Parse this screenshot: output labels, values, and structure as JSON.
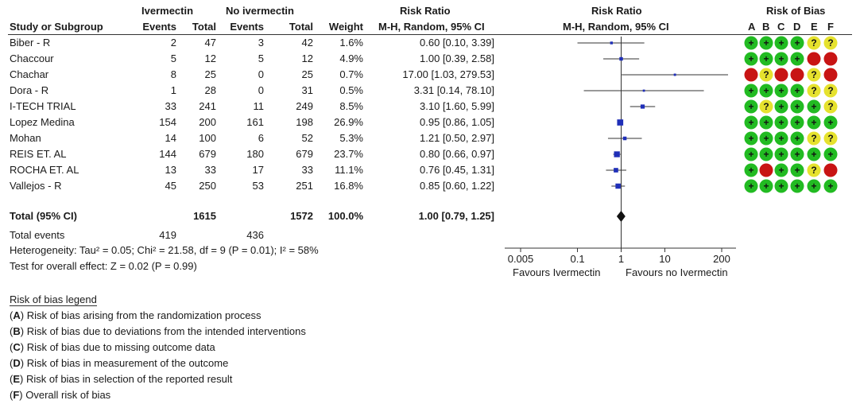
{
  "headers": {
    "group1": "Ivermectin",
    "group2": "No ivermectin",
    "study": "Study or Subgroup",
    "events": "Events",
    "total": "Total",
    "weight": "Weight",
    "rr_title": "Risk Ratio",
    "rr_sub": "M-H, Random, 95% CI",
    "plot_title": "Risk Ratio",
    "plot_sub": "M-H, Random, 95% CI",
    "rob_title": "Risk of Bias",
    "rob_letters": [
      "A",
      "B",
      "C",
      "D",
      "E",
      "F"
    ]
  },
  "studies": [
    {
      "name": "Biber - R",
      "e1": "2",
      "t1": "47",
      "e2": "3",
      "t2": "42",
      "weight": "1.6%",
      "rr": "0.60 [0.10, 3.39]",
      "rob": [
        "+",
        "+",
        "+",
        "+",
        "?",
        "?"
      ]
    },
    {
      "name": "Chaccour",
      "e1": "5",
      "t1": "12",
      "e2": "5",
      "t2": "12",
      "weight": "4.9%",
      "rr": "1.00 [0.39, 2.58]",
      "rob": [
        "+",
        "+",
        "+",
        "+",
        "-",
        "-"
      ]
    },
    {
      "name": "Chachar",
      "e1": "8",
      "t1": "25",
      "e2": "0",
      "t2": "25",
      "weight": "0.7%",
      "rr": "17.00 [1.03, 279.53]",
      "rob": [
        "-",
        "?",
        "-",
        "-",
        "?",
        "-"
      ]
    },
    {
      "name": "Dora - R",
      "e1": "1",
      "t1": "28",
      "e2": "0",
      "t2": "31",
      "weight": "0.5%",
      "rr": "3.31 [0.14, 78.10]",
      "rob": [
        "+",
        "+",
        "+",
        "+",
        "?",
        "?"
      ]
    },
    {
      "name": "I-TECH TRIAL",
      "e1": "33",
      "t1": "241",
      "e2": "11",
      "t2": "249",
      "weight": "8.5%",
      "rr": "3.10 [1.60, 5.99]",
      "rob": [
        "+",
        "?",
        "+",
        "+",
        "+",
        "?"
      ]
    },
    {
      "name": "Lopez Medina",
      "e1": "154",
      "t1": "200",
      "e2": "161",
      "t2": "198",
      "weight": "26.9%",
      "rr": "0.95 [0.86, 1.05]",
      "rob": [
        "+",
        "+",
        "+",
        "+",
        "+",
        "+"
      ]
    },
    {
      "name": "Mohan",
      "e1": "14",
      "t1": "100",
      "e2": "6",
      "t2": "52",
      "weight": "5.3%",
      "rr": "1.21 [0.50, 2.97]",
      "rob": [
        "+",
        "+",
        "+",
        "+",
        "?",
        "?"
      ]
    },
    {
      "name": "REIS ET. AL",
      "e1": "144",
      "t1": "679",
      "e2": "180",
      "t2": "679",
      "weight": "23.7%",
      "rr": "0.80 [0.66, 0.97]",
      "rob": [
        "+",
        "+",
        "+",
        "+",
        "+",
        "+"
      ]
    },
    {
      "name": "ROCHA ET. AL",
      "e1": "13",
      "t1": "33",
      "e2": "17",
      "t2": "33",
      "weight": "11.1%",
      "rr": "0.76 [0.45, 1.31]",
      "rob": [
        "+",
        "-",
        "+",
        "+",
        "?",
        "-"
      ]
    },
    {
      "name": "Vallejos - R",
      "e1": "45",
      "t1": "250",
      "e2": "53",
      "t2": "251",
      "weight": "16.8%",
      "rr": "0.85 [0.60, 1.22]",
      "rob": [
        "+",
        "+",
        "+",
        "+",
        "+",
        "+"
      ]
    }
  ],
  "total": {
    "label": "Total (95% CI)",
    "t1": "1615",
    "t2": "1572",
    "weight": "100.0%",
    "rr": "1.00 [0.79, 1.25]"
  },
  "total_events": {
    "label": "Total events",
    "e1": "419",
    "e2": "436"
  },
  "heterogeneity": "Heterogeneity: Tau² = 0.05; Chi² = 21.58, df = 9 (P = 0.01); I² = 58%",
  "overall_effect": "Test for overall effect: Z = 0.02 (P = 0.99)",
  "axis": {
    "ticks": [
      "0.005",
      "0.1",
      "1",
      "10",
      "200"
    ],
    "left_label": "Favours Ivermectin",
    "right_label": "Favours no Ivermectin"
  },
  "rob_legend": {
    "title": "Risk of bias legend",
    "items": [
      {
        "key": "A",
        "text": " Risk of bias arising from the randomization process"
      },
      {
        "key": "B",
        "text": " Risk of bias due to deviations from the intended interventions"
      },
      {
        "key": "C",
        "text": " Risk of bias due to missing outcome data"
      },
      {
        "key": "D",
        "text": " Risk of bias in measurement of the outcome"
      },
      {
        "key": "E",
        "text": " Risk of bias in selection of the reported result"
      },
      {
        "key": "F",
        "text": " Overall risk of bias"
      }
    ]
  },
  "colors": {
    "low": "#22bb22",
    "some": "#e6e22e",
    "high": "#c81414",
    "marker": "#1f2fb8",
    "line": "#333333"
  },
  "chart_data": {
    "type": "forest",
    "x_scale": "log",
    "xlim": [
      0.005,
      200
    ],
    "categories": [
      "Biber - R",
      "Chaccour",
      "Chachar",
      "Dora - R",
      "I-TECH TRIAL",
      "Lopez Medina",
      "Mohan",
      "REIS ET. AL",
      "ROCHA ET. AL",
      "Vallejos - R"
    ],
    "estimates": [
      0.6,
      1.0,
      17.0,
      3.31,
      3.1,
      0.95,
      1.21,
      0.8,
      0.76,
      0.85
    ],
    "ci_low": [
      0.1,
      0.39,
      1.03,
      0.14,
      1.6,
      0.86,
      0.5,
      0.66,
      0.45,
      0.6
    ],
    "ci_high": [
      3.39,
      2.58,
      279.53,
      78.1,
      5.99,
      1.05,
      2.97,
      0.97,
      1.31,
      1.22
    ],
    "weights": [
      1.6,
      4.9,
      0.7,
      0.5,
      8.5,
      26.9,
      5.3,
      23.7,
      11.1,
      16.8
    ],
    "pooled": {
      "estimate": 1.0,
      "ci_low": 0.79,
      "ci_high": 1.25
    }
  }
}
